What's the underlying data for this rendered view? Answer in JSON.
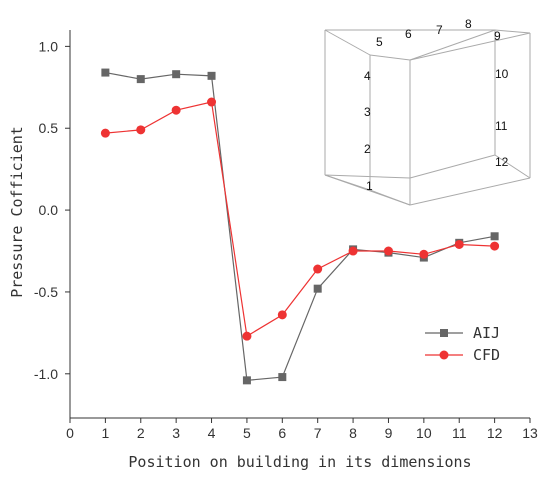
{
  "chart_data": {
    "type": "line",
    "xlabel": "Position on building in its dimensions",
    "ylabel": "Pressure Cofficient",
    "xlim": [
      0,
      13
    ],
    "ylim": [
      -1.2,
      1.0
    ],
    "xticks": [
      0,
      1,
      2,
      3,
      4,
      5,
      6,
      7,
      8,
      9,
      10,
      11,
      12,
      13
    ],
    "yticks": [
      1.0,
      0.5,
      0.0,
      -0.5,
      -1.0
    ],
    "ytick_labels": [
      "1.0",
      "0.5",
      "0.0",
      "-0.5",
      "-1.0"
    ],
    "grid": false,
    "legend_position": "bottom-right",
    "series": [
      {
        "name": "AIJ",
        "marker": "square",
        "color": "#666666",
        "x": [
          1,
          2,
          3,
          4,
          5,
          6,
          7,
          8,
          9,
          10,
          11,
          12
        ],
        "values": [
          0.84,
          0.8,
          0.83,
          0.82,
          -1.04,
          -1.02,
          -0.48,
          -0.24,
          -0.26,
          -0.29,
          -0.2,
          -0.16
        ]
      },
      {
        "name": "CFD",
        "marker": "circle",
        "color": "#ee3333",
        "x": [
          1,
          2,
          3,
          4,
          5,
          6,
          7,
          8,
          9,
          10,
          11,
          12
        ],
        "values": [
          0.47,
          0.49,
          0.61,
          0.66,
          -0.77,
          -0.64,
          -0.36,
          -0.25,
          -0.25,
          -0.27,
          -0.21,
          -0.22
        ]
      }
    ],
    "inset": {
      "description_points": [
        "1",
        "2",
        "3",
        "4",
        "5",
        "6",
        "7",
        "8",
        "9",
        "10",
        "11",
        "12"
      ]
    }
  }
}
